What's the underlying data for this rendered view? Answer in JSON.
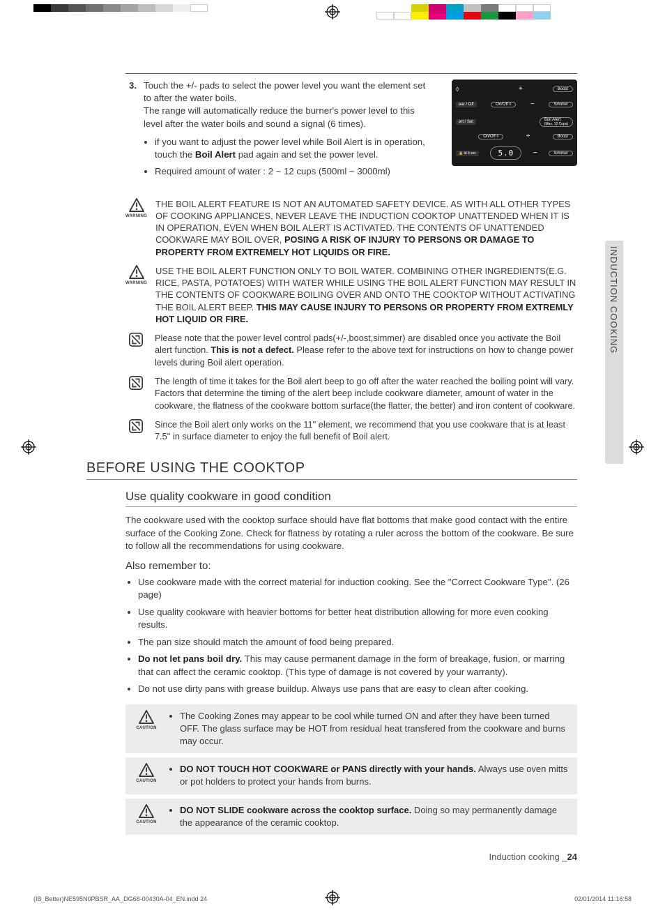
{
  "colorbars": {
    "top_left": [
      "#000000",
      "#3a3a3a",
      "#555555",
      "#707070",
      "#8a8a8a",
      "#a4a4a4",
      "#bebebe",
      "#d8d8d8",
      "#efefef",
      "#ffffff"
    ],
    "top_right_upper": [
      "#d8d300",
      "#cf006f",
      "#00a0c8",
      "#c0c0c0",
      "#7a7a7a",
      "#ffffff",
      "#ffffff",
      "#ffffff"
    ],
    "top_right_lower": [
      "#ffffff",
      "#ffffff",
      "#ffed00",
      "#e2007a",
      "#009ee0",
      "#e30613",
      "#1a9641",
      "#000000",
      "#ff9ec6",
      "#8ed2f0"
    ]
  },
  "sidetab": {
    "label": "INDUCTION COOKING"
  },
  "step": {
    "num": "3.",
    "line1": "Touch the +/- pads to select the power level you want the element set to after the water boils.",
    "line2": "The range will automatically reduce the burner's power level to this level after the water boils and sound a signal (6 times).",
    "bullet1a": "if you want to adjust the power level while Boil Alert is in operation, touch the ",
    "bullet1_bold": "Boil Alert",
    "bullet1b": " pad again and set the power level.",
    "bullet2": "Required amount of water : 2 ~ 12 cups (500ml ~ 3000ml)"
  },
  "panel": {
    "btn_on_off": "On/Off",
    "btn_set": "ert / Set",
    "btn_clear_off": "ear / Off",
    "display": "5.0",
    "right_boost": "Boost",
    "right_simmer": "Simmer",
    "right_boil": "Boil Alert",
    "right_boil_sub": "(Max. 12 Cups)",
    "lock": "ld 3 sec"
  },
  "warnings": [
    {
      "type": "WARNING",
      "pre": "THE BOIL ALERT FEATURE IS NOT AN AUTOMATED SAFETY DEVICE. AS WITH ALL OTHER TYPES OF COOKING APPLIANCES, NEVER LEAVE THE INDUCTION COOKTOP UNATTENDED WHEN IT IS IN OPERATION, EVEN WHEN BOIL ALERT IS ACTIVATED. THE CONTENTS OF UNATTENDED COOKWARE MAY BOIL OVER, ",
      "bold": "POSING A RISK OF INJURY TO PERSONS OR DAMAGE TO PROPERTY FROM EXTREMELY HOT LIQUIDS OR FIRE."
    },
    {
      "type": "WARNING",
      "pre": "USE THE BOIL ALERT FUNCTION ONLY TO BOIL WATER. COMBINING OTHER INGREDIENTS(E.G. RICE, PASTA, POTATOES) WITH WATER WHILE USING THE BOIL ALERT FUNCTION MAY RESULT IN THE CONTENTS OF COOKWARE BOILING OVER AND ONTO THE COOKTOP WITHOUT ACTIVATING THE BOIL ALERT BEEP. ",
      "bold": "THIS MAY CAUSE INJURY TO PERSONS OR PROPERTY FROM EXTREMLY HOT LIQUID OR FIRE."
    }
  ],
  "notes": [
    {
      "pre": "Please note that the power level control pads(+/-,boost,simmer) are disabled once you activate the Boil alert function. ",
      "bold": "This is not a defect.",
      "post": " Please refer to the above text for instructions on how to change power levels during Boil alert operation."
    },
    {
      "pre": "The length of time it takes for the Boil alert beep to go off after the water reached the boiling point will vary. Factors that determine the timing of the alert beep include cookware diameter, amount of water in the cookware, the flatness of the cookware bottom surface(the flatter, the better) and iron content of cookware.",
      "bold": "",
      "post": ""
    },
    {
      "pre": "Since the Boil alert only works on the 11\" element, we recommend that you use cookware that is at least 7.5\" in surface diameter to enjoy the full benefit of Boil alert.",
      "bold": "",
      "post": ""
    }
  ],
  "section": {
    "h1": "BEFORE USING THE COOKTOP",
    "h2": "Use quality cookware in good condition",
    "intro": "The cookware used with the cooktop surface should have flat bottoms that make good contact with the entire surface of the Cooking Zone. Check for flatness by rotating a ruler across the bottom of the cookware. Be sure to follow all the recommendations for using cookware.",
    "h3": "Also remember to:",
    "bullets": [
      {
        "pre": "Use cookware made with the correct material for induction cooking. See the \"Correct Cookware Type\". (26 page)",
        "bold": "",
        "post": ""
      },
      {
        "pre": "Use quality cookware with heavier bottoms for better heat distribution allowing for more even cooking results.",
        "bold": "",
        "post": ""
      },
      {
        "pre": "The pan size should match the amount of food being prepared.",
        "bold": "",
        "post": ""
      },
      {
        "pre": "",
        "bold": "Do not let pans boil dry.",
        "post": " This may cause permanent damage in the form of breakage, fusion, or marring that can affect the ceramic cooktop. (This type of damage is not covered by your warranty)."
      },
      {
        "pre": "Do not use dirty pans with grease buildup. Always use pans that are easy to clean after cooking.",
        "bold": "",
        "post": ""
      }
    ]
  },
  "cautions": [
    {
      "pre": "The Cooking Zones may appear to be cool while turned ON and after they have been turned OFF. The glass surface may be HOT from residual heat transfered from the cookware and burns may occur.",
      "bold": "",
      "post": ""
    },
    {
      "pre": "",
      "bold": "DO NOT TOUCH HOT COOKWARE or PANS directly with your hands.",
      "post": " Always use oven mitts or pot holders to protect your hands from burns."
    },
    {
      "pre": "",
      "bold": "DO NOT SLIDE cookware across the cooktop surface.",
      "post": " Doing so may permanently damage the appearance of the ceramic cooktop."
    }
  ],
  "caution_label": "CAUTION",
  "footer": {
    "section": "Induction cooking _",
    "page": "24",
    "file": "(IB_Better)NE595N0PBSR_AA_DG68-00430A-04_EN.indd   24",
    "timestamp": "02/01/2014   11:16:58"
  }
}
